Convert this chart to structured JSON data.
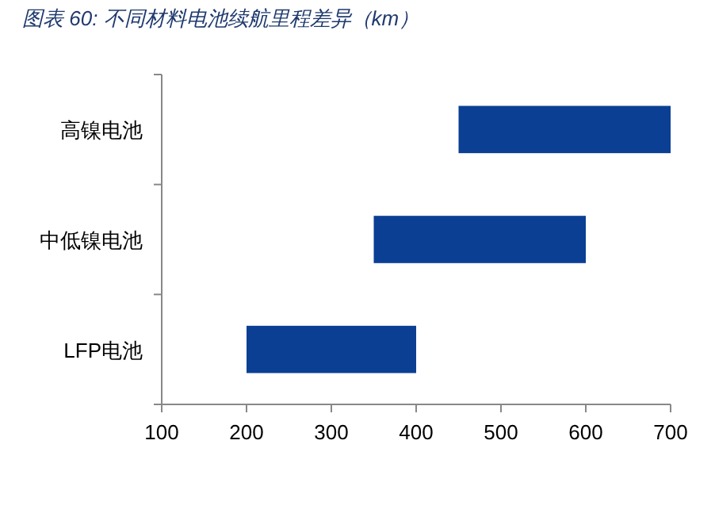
{
  "chart_data": {
    "type": "bar",
    "orientation": "horizontal",
    "title": "图表 60:  不同材料电池续航里程差异（km）",
    "categories": [
      "高镍电池",
      "中低镍电池",
      "LFP电池"
    ],
    "base": [
      450,
      350,
      200
    ],
    "values": [
      250,
      250,
      200
    ],
    "color": "#0b3f94",
    "xlim": [
      100,
      700
    ],
    "xticks": [
      100,
      200,
      300,
      400,
      500,
      600,
      700
    ],
    "grid": false
  }
}
